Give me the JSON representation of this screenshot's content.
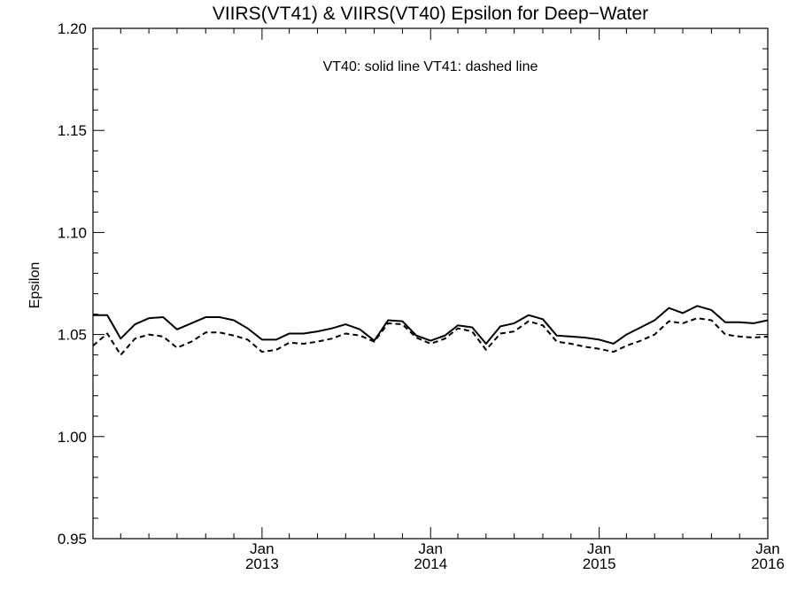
{
  "chart_data": {
    "type": "line",
    "title": "VIIRS(VT41) & VIIRS(VT40)  Epsilon for Deep−Water",
    "annotation": "VT40: solid line   VT41: dashed line",
    "xlabel": "",
    "ylabel": "Epsilon",
    "ylim": [
      0.95,
      1.2
    ],
    "xlim": [
      "2012-01-01",
      "2016-01-01"
    ],
    "y_ticks": [
      "0.95",
      "1.00",
      "1.05",
      "1.10",
      "1.15",
      "1.20"
    ],
    "x_ticks": [
      {
        "date": "2013-01-01",
        "month": "Jan",
        "year": "2013"
      },
      {
        "date": "2014-01-01",
        "month": "Jan",
        "year": "2014"
      },
      {
        "date": "2015-01-01",
        "month": "Jan",
        "year": "2015"
      },
      {
        "date": "2016-01-01",
        "month": "Jan",
        "year": "2016"
      }
    ],
    "grid": false,
    "x": [
      "2012-01-01",
      "2012-02-01",
      "2012-03-01",
      "2012-04-01",
      "2012-05-01",
      "2012-06-01",
      "2012-07-01",
      "2012-08-01",
      "2012-09-01",
      "2012-10-01",
      "2012-11-01",
      "2012-12-01",
      "2013-01-01",
      "2013-02-01",
      "2013-03-01",
      "2013-04-01",
      "2013-05-01",
      "2013-06-01",
      "2013-07-01",
      "2013-08-01",
      "2013-09-01",
      "2013-10-01",
      "2013-11-01",
      "2013-12-01",
      "2014-01-01",
      "2014-02-01",
      "2014-03-01",
      "2014-04-01",
      "2014-05-01",
      "2014-06-01",
      "2014-07-01",
      "2014-08-01",
      "2014-09-01",
      "2014-10-01",
      "2014-11-01",
      "2014-12-01",
      "2015-01-01",
      "2015-02-01",
      "2015-03-01",
      "2015-04-01",
      "2015-05-01",
      "2015-06-01",
      "2015-07-01",
      "2015-08-01",
      "2015-09-01",
      "2015-10-01",
      "2015-11-01",
      "2015-12-01",
      "2016-01-01"
    ],
    "series": [
      {
        "name": "VT40",
        "style": "solid",
        "color": "#000000",
        "values": [
          1.0595,
          1.0595,
          1.048,
          1.055,
          1.058,
          1.0585,
          1.0525,
          1.0555,
          1.0585,
          1.0585,
          1.057,
          1.053,
          1.0475,
          1.0475,
          1.0505,
          1.0505,
          1.0515,
          1.053,
          1.055,
          1.0525,
          1.047,
          1.057,
          1.0565,
          1.0495,
          1.047,
          1.0495,
          1.0545,
          1.0535,
          1.0455,
          1.054,
          1.0555,
          1.0595,
          1.0575,
          1.0495,
          1.049,
          1.0485,
          1.0475,
          1.0455,
          1.05,
          1.0535,
          1.057,
          1.063,
          1.0605,
          1.064,
          1.062,
          1.056,
          1.056,
          1.0555,
          1.057
        ]
      },
      {
        "name": "VT41",
        "style": "dashed",
        "color": "#000000",
        "values": [
          1.0445,
          1.0505,
          1.04,
          1.048,
          1.05,
          1.049,
          1.0435,
          1.0465,
          1.051,
          1.051,
          1.0495,
          1.0475,
          1.0415,
          1.0425,
          1.046,
          1.0455,
          1.0465,
          1.048,
          1.0505,
          1.0495,
          1.0465,
          1.0555,
          1.055,
          1.0485,
          1.0455,
          1.048,
          1.053,
          1.0515,
          1.0425,
          1.0505,
          1.0515,
          1.0565,
          1.0545,
          1.0465,
          1.0455,
          1.044,
          1.043,
          1.0415,
          1.0445,
          1.047,
          1.05,
          1.0565,
          1.0555,
          1.058,
          1.057,
          1.05,
          1.049,
          1.0485,
          1.049
        ]
      }
    ]
  }
}
